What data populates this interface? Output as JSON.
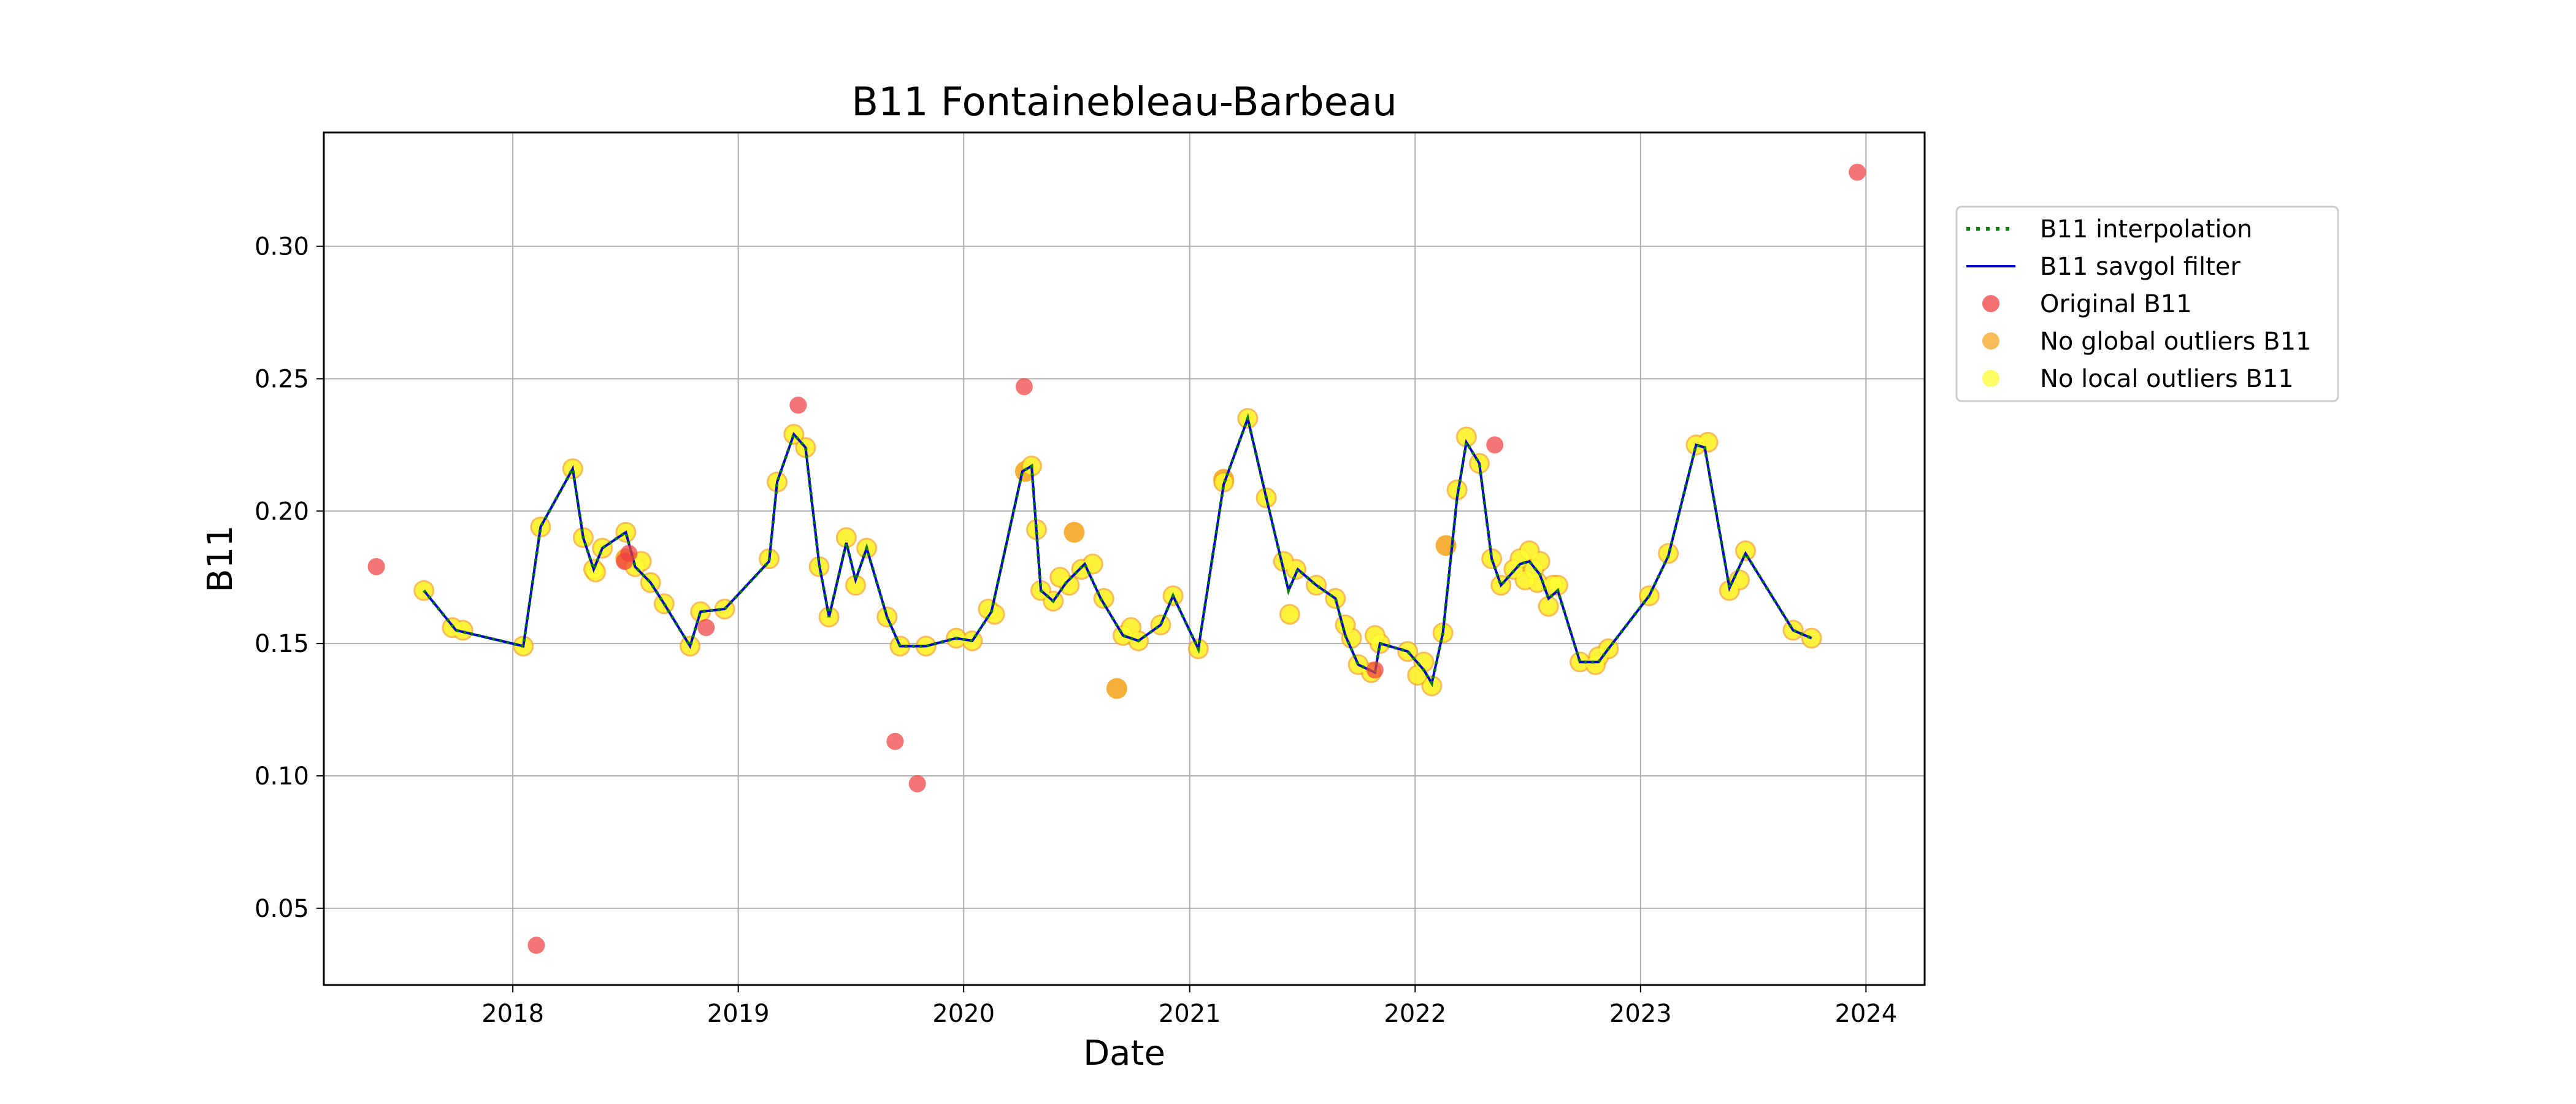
{
  "chart_data": {
    "type": "scatter",
    "title": "B11 Fontainebleau-Barbeau",
    "xlabel": "Date",
    "ylabel": "B11",
    "xlim": [
      "2017-03-01",
      "2024-04-05"
    ],
    "ylim": [
      0.021,
      0.343
    ],
    "x_ticks": [
      {
        "date": "2018-01-01",
        "label": "2018"
      },
      {
        "date": "2019-01-01",
        "label": "2019"
      },
      {
        "date": "2020-01-01",
        "label": "2020"
      },
      {
        "date": "2021-01-01",
        "label": "2021"
      },
      {
        "date": "2022-01-01",
        "label": "2022"
      },
      {
        "date": "2023-01-01",
        "label": "2023"
      },
      {
        "date": "2024-01-01",
        "label": "2024"
      }
    ],
    "y_ticks": [
      {
        "value": 0.05,
        "label": "0.05"
      },
      {
        "value": 0.1,
        "label": "0.10"
      },
      {
        "value": 0.15,
        "label": "0.15"
      },
      {
        "value": 0.2,
        "label": "0.20"
      },
      {
        "value": 0.25,
        "label": "0.25"
      },
      {
        "value": 0.3,
        "label": "0.30"
      }
    ],
    "grid": true,
    "legend_position": "outside-right-top",
    "legend": [
      {
        "label": "B11 interpolation",
        "marker": "dotted-line",
        "color": "#008000"
      },
      {
        "label": "B11 savgol filter",
        "marker": "line",
        "color": "#0000cc"
      },
      {
        "label": "Original B11",
        "marker": "dot",
        "color": "#f04040"
      },
      {
        "label": "No global outliers B11",
        "marker": "dot",
        "color": "#f5a623"
      },
      {
        "label": "No local outliers B11",
        "marker": "dot",
        "color": "#ffff33"
      }
    ],
    "series": [
      {
        "name": "B11 savgol filter",
        "kind": "line",
        "color": "#0000cc",
        "points": [
          [
            "2017-08-10",
            0.17
          ],
          [
            "2017-10-01",
            0.155
          ],
          [
            "2018-01-18",
            0.149
          ],
          [
            "2018-02-15",
            0.194
          ],
          [
            "2018-04-08",
            0.216
          ],
          [
            "2018-04-25",
            0.19
          ],
          [
            "2018-05-12",
            0.178
          ],
          [
            "2018-05-26",
            0.186
          ],
          [
            "2018-07-03",
            0.192
          ],
          [
            "2018-07-18",
            0.179
          ],
          [
            "2018-08-12",
            0.173
          ],
          [
            "2018-09-03",
            0.165
          ],
          [
            "2018-10-15",
            0.149
          ],
          [
            "2018-11-01",
            0.162
          ],
          [
            "2018-12-10",
            0.163
          ],
          [
            "2019-02-20",
            0.181
          ],
          [
            "2019-03-05",
            0.211
          ],
          [
            "2019-04-01",
            0.229
          ],
          [
            "2019-04-20",
            0.224
          ],
          [
            "2019-05-12",
            0.18
          ],
          [
            "2019-05-28",
            0.16
          ],
          [
            "2019-06-25",
            0.188
          ],
          [
            "2019-07-10",
            0.174
          ],
          [
            "2019-07-28",
            0.186
          ],
          [
            "2019-08-30",
            0.16
          ],
          [
            "2019-09-20",
            0.149
          ],
          [
            "2019-11-01",
            0.149
          ],
          [
            "2019-12-20",
            0.152
          ],
          [
            "2020-01-15",
            0.151
          ],
          [
            "2020-02-15",
            0.162
          ],
          [
            "2020-04-05",
            0.215
          ],
          [
            "2020-04-20",
            0.217
          ],
          [
            "2020-05-05",
            0.17
          ],
          [
            "2020-05-25",
            0.166
          ],
          [
            "2020-06-15",
            0.173
          ],
          [
            "2020-07-15",
            0.18
          ],
          [
            "2020-08-10",
            0.167
          ],
          [
            "2020-09-15",
            0.153
          ],
          [
            "2020-10-10",
            0.151
          ],
          [
            "2020-11-15",
            0.157
          ],
          [
            "2020-12-05",
            0.168
          ],
          [
            "2021-01-15",
            0.148
          ],
          [
            "2021-02-25",
            0.21
          ],
          [
            "2021-04-05",
            0.235
          ],
          [
            "2021-05-05",
            0.205
          ],
          [
            "2021-06-10",
            0.17
          ],
          [
            "2021-06-25",
            0.178
          ],
          [
            "2021-07-25",
            0.172
          ],
          [
            "2021-08-25",
            0.167
          ],
          [
            "2021-09-10",
            0.153
          ],
          [
            "2021-10-01",
            0.142
          ],
          [
            "2021-10-28",
            0.139
          ],
          [
            "2021-11-05",
            0.15
          ],
          [
            "2021-12-20",
            0.147
          ],
          [
            "2022-01-15",
            0.14
          ],
          [
            "2022-01-28",
            0.135
          ],
          [
            "2022-02-15",
            0.154
          ],
          [
            "2022-03-10",
            0.205
          ],
          [
            "2022-03-25",
            0.226
          ],
          [
            "2022-04-15",
            0.218
          ],
          [
            "2022-05-05",
            0.182
          ],
          [
            "2022-05-20",
            0.172
          ],
          [
            "2022-06-20",
            0.18
          ],
          [
            "2022-07-05",
            0.181
          ],
          [
            "2022-07-22",
            0.176
          ],
          [
            "2022-08-05",
            0.167
          ],
          [
            "2022-08-20",
            0.17
          ],
          [
            "2022-09-25",
            0.143
          ],
          [
            "2022-10-25",
            0.143
          ],
          [
            "2022-11-10",
            0.148
          ],
          [
            "2023-01-15",
            0.168
          ],
          [
            "2023-02-15",
            0.183
          ],
          [
            "2023-04-01",
            0.225
          ],
          [
            "2023-04-15",
            0.224
          ],
          [
            "2023-05-25",
            0.171
          ],
          [
            "2023-06-20",
            0.184
          ],
          [
            "2023-09-05",
            0.155
          ],
          [
            "2023-10-05",
            0.152
          ]
        ]
      },
      {
        "name": "No local outliers B11",
        "kind": "scatter",
        "color": "#ffff33",
        "points": [
          [
            "2017-08-10",
            0.17
          ],
          [
            "2017-09-25",
            0.156
          ],
          [
            "2017-10-12",
            0.155
          ],
          [
            "2018-01-18",
            0.149
          ],
          [
            "2018-02-15",
            0.194
          ],
          [
            "2018-04-08",
            0.216
          ],
          [
            "2018-04-25",
            0.19
          ],
          [
            "2018-05-12",
            0.178
          ],
          [
            "2018-05-15",
            0.177
          ],
          [
            "2018-05-26",
            0.186
          ],
          [
            "2018-07-03",
            0.192
          ],
          [
            "2018-07-18",
            0.179
          ],
          [
            "2018-07-28",
            0.181
          ],
          [
            "2018-08-12",
            0.173
          ],
          [
            "2018-09-03",
            0.165
          ],
          [
            "2018-10-15",
            0.149
          ],
          [
            "2018-11-01",
            0.162
          ],
          [
            "2018-12-10",
            0.163
          ],
          [
            "2019-02-20",
            0.182
          ],
          [
            "2019-03-05",
            0.211
          ],
          [
            "2019-04-01",
            0.229
          ],
          [
            "2019-04-20",
            0.224
          ],
          [
            "2019-05-12",
            0.179
          ],
          [
            "2019-05-28",
            0.16
          ],
          [
            "2019-06-25",
            0.19
          ],
          [
            "2019-07-10",
            0.172
          ],
          [
            "2019-07-28",
            0.186
          ],
          [
            "2019-08-30",
            0.16
          ],
          [
            "2019-09-20",
            0.149
          ],
          [
            "2019-11-01",
            0.149
          ],
          [
            "2019-12-20",
            0.152
          ],
          [
            "2020-01-15",
            0.151
          ],
          [
            "2020-02-10",
            0.163
          ],
          [
            "2020-02-20",
            0.161
          ],
          [
            "2020-04-20",
            0.217
          ],
          [
            "2020-04-28",
            0.193
          ],
          [
            "2020-05-05",
            0.17
          ],
          [
            "2020-05-25",
            0.166
          ],
          [
            "2020-06-05",
            0.175
          ],
          [
            "2020-06-20",
            0.172
          ],
          [
            "2020-07-10",
            0.178
          ],
          [
            "2020-07-28",
            0.18
          ],
          [
            "2020-08-15",
            0.167
          ],
          [
            "2020-09-15",
            0.153
          ],
          [
            "2020-09-28",
            0.156
          ],
          [
            "2020-10-10",
            0.151
          ],
          [
            "2020-11-15",
            0.157
          ],
          [
            "2020-12-05",
            0.168
          ],
          [
            "2021-01-15",
            0.148
          ],
          [
            "2021-02-25",
            0.211
          ],
          [
            "2021-04-05",
            0.235
          ],
          [
            "2021-05-05",
            0.205
          ],
          [
            "2021-06-02",
            0.181
          ],
          [
            "2021-06-12",
            0.161
          ],
          [
            "2021-06-22",
            0.178
          ],
          [
            "2021-07-25",
            0.172
          ],
          [
            "2021-08-25",
            0.167
          ],
          [
            "2021-09-10",
            0.157
          ],
          [
            "2021-09-20",
            0.152
          ],
          [
            "2021-10-01",
            0.142
          ],
          [
            "2021-10-22",
            0.139
          ],
          [
            "2021-10-28",
            0.153
          ],
          [
            "2021-11-05",
            0.15
          ],
          [
            "2021-12-20",
            0.147
          ],
          [
            "2022-01-05",
            0.138
          ],
          [
            "2022-01-15",
            0.143
          ],
          [
            "2022-01-28",
            0.134
          ],
          [
            "2022-02-15",
            0.154
          ],
          [
            "2022-03-10",
            0.208
          ],
          [
            "2022-03-25",
            0.228
          ],
          [
            "2022-04-15",
            0.218
          ],
          [
            "2022-05-05",
            0.182
          ],
          [
            "2022-05-20",
            0.172
          ],
          [
            "2022-06-10",
            0.178
          ],
          [
            "2022-06-20",
            0.182
          ],
          [
            "2022-06-28",
            0.174
          ],
          [
            "2022-07-05",
            0.185
          ],
          [
            "2022-07-12",
            0.178
          ],
          [
            "2022-07-18",
            0.173
          ],
          [
            "2022-07-22",
            0.181
          ],
          [
            "2022-08-05",
            0.164
          ],
          [
            "2022-08-12",
            0.172
          ],
          [
            "2022-08-20",
            0.172
          ],
          [
            "2022-09-25",
            0.143
          ],
          [
            "2022-10-20",
            0.142
          ],
          [
            "2022-10-25",
            0.145
          ],
          [
            "2022-11-10",
            0.148
          ],
          [
            "2023-01-15",
            0.168
          ],
          [
            "2023-02-15",
            0.184
          ],
          [
            "2023-04-01",
            0.225
          ],
          [
            "2023-04-20",
            0.226
          ],
          [
            "2023-05-25",
            0.17
          ],
          [
            "2023-06-10",
            0.174
          ],
          [
            "2023-06-20",
            0.185
          ],
          [
            "2023-09-05",
            0.155
          ],
          [
            "2023-10-05",
            0.152
          ]
        ]
      },
      {
        "name": "No global outliers B11",
        "kind": "scatter",
        "color": "#f5a623",
        "points": [
          [
            "2018-07-03",
            0.182
          ],
          [
            "2020-04-10",
            0.215
          ],
          [
            "2020-06-28",
            0.192
          ],
          [
            "2020-09-05",
            0.133
          ],
          [
            "2021-02-25",
            0.212
          ],
          [
            "2022-02-20",
            0.187
          ]
        ]
      },
      {
        "name": "Original B11",
        "kind": "scatter",
        "color": "#f04040",
        "points": [
          [
            "2017-05-25",
            0.179
          ],
          [
            "2018-02-08",
            0.036
          ],
          [
            "2018-07-01",
            0.181
          ],
          [
            "2018-07-08",
            0.184
          ],
          [
            "2018-11-10",
            0.156
          ],
          [
            "2019-04-08",
            0.24
          ],
          [
            "2019-09-12",
            0.113
          ],
          [
            "2019-10-18",
            0.097
          ],
          [
            "2020-04-08",
            0.247
          ],
          [
            "2021-10-28",
            0.14
          ],
          [
            "2022-05-10",
            0.225
          ],
          [
            "2023-12-18",
            0.328
          ]
        ]
      }
    ]
  }
}
